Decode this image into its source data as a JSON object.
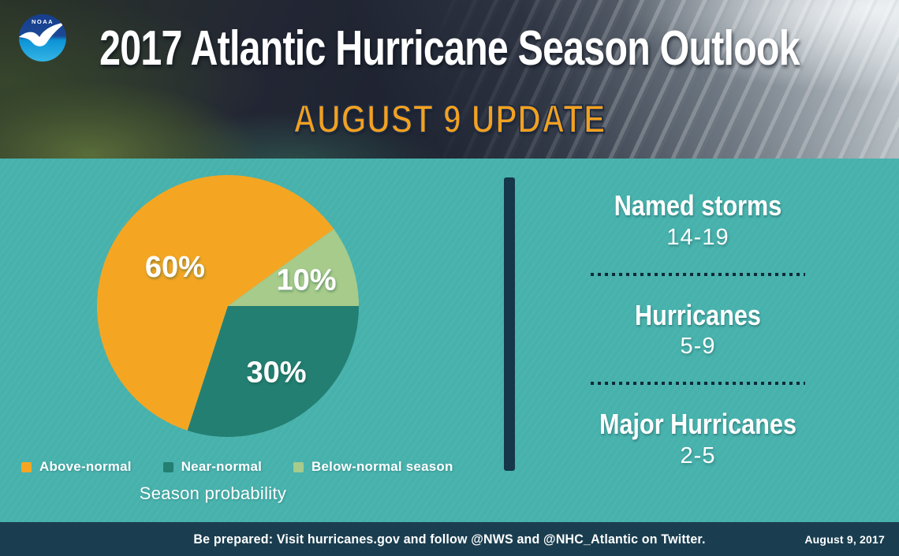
{
  "header": {
    "logo_text": "NOAA",
    "title": "2017 Atlantic Hurricane Season Outlook",
    "subtitle": "AUGUST 9 UPDATE"
  },
  "chart_data": {
    "type": "pie",
    "title": "Season probability",
    "slices": [
      {
        "label": "Above-normal",
        "value": 60,
        "color": "#f4a623"
      },
      {
        "label": "Near-normal",
        "value": 30,
        "color": "#237f72"
      },
      {
        "label": "Below-normal season",
        "value": 10,
        "color": "#a7cb8b"
      }
    ],
    "draw_order": [
      0,
      2,
      1
    ],
    "start_angle_deg": 108,
    "legend_position": "bottom"
  },
  "outlook": {
    "items": [
      {
        "label": "Named storms",
        "range": "14-19"
      },
      {
        "label": "Hurricanes",
        "range": "5-9"
      },
      {
        "label": "Major Hurricanes",
        "range": "2-5"
      }
    ]
  },
  "footer": {
    "message": "Be prepared: Visit hurricanes.gov and follow @NWS and @NHC_Atlantic on Twitter.",
    "date": "August 9, 2017"
  },
  "colors": {
    "background_teal": "#47b1ac",
    "accent_orange": "#f2a121",
    "divider_navy": "#153749",
    "footer_navy": "#1a3e50",
    "dotted_line": "#0d2a36",
    "subtitle_outline": "#1e2c45"
  }
}
